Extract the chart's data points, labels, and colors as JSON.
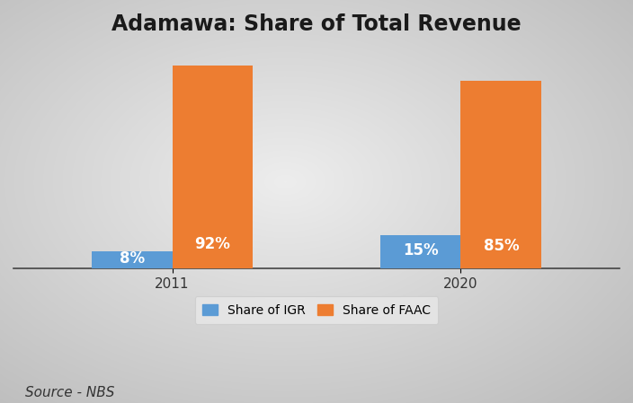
{
  "title": "Adamawa: Share of Total Revenue",
  "years": [
    "2011",
    "2020"
  ],
  "igr_values": [
    8,
    15
  ],
  "faac_values": [
    92,
    85
  ],
  "igr_color": "#5B9BD5",
  "faac_color": "#ED7D31",
  "igr_label": "Share of IGR",
  "faac_label": "Share of FAAC",
  "source_text": "Source - NBS",
  "bar_width": 0.28,
  "ylim": [
    0,
    100
  ],
  "title_fontsize": 17,
  "label_fontsize": 12,
  "tick_fontsize": 11,
  "source_fontsize": 11,
  "legend_fontsize": 10
}
